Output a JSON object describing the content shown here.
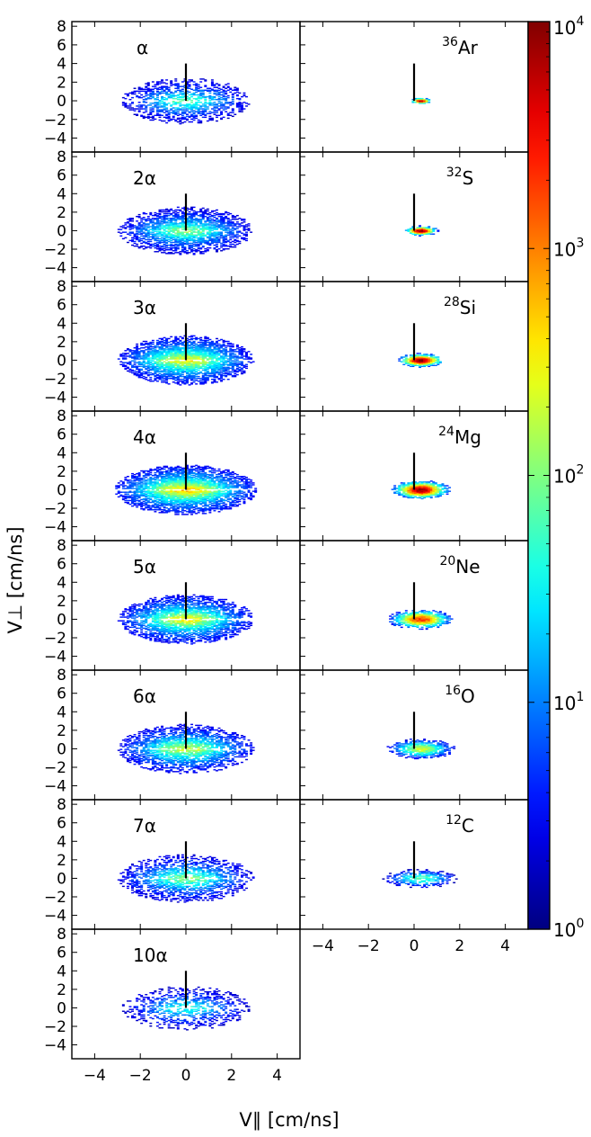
{
  "chart_data": {
    "type": "heatmap",
    "description_free": true,
    "xlabel": "V∥ [cm/ns]",
    "ylabel": "V⊥ [cm/ns]",
    "xlim": [
      -5,
      5
    ],
    "ylim": [
      -5.5,
      8.5
    ],
    "x_ticks": [
      -4,
      -2,
      0,
      2,
      4
    ],
    "y_ticks": [
      -4,
      -2,
      0,
      2,
      4,
      6,
      8
    ],
    "colorbar": {
      "scale": "log",
      "ticks": [
        {
          "base": "10",
          "exp": "0",
          "value": 1
        },
        {
          "base": "10",
          "exp": "1",
          "value": 10
        },
        {
          "base": "10",
          "exp": "2",
          "value": 100
        },
        {
          "base": "10",
          "exp": "3",
          "value": 1000
        },
        {
          "base": "10",
          "exp": "4",
          "value": 10000
        }
      ],
      "range": [
        1,
        10000
      ]
    },
    "marker_line": {
      "x": 0,
      "y0": 0,
      "y1": 4
    },
    "panels": [
      {
        "label": "α",
        "sup": "",
        "column": 0,
        "row": 0,
        "sigma_x": 1.9,
        "sigma_y": 2.3,
        "peak_log": 1.9,
        "density": 0.55,
        "type": "alpha"
      },
      {
        "label": "2α",
        "sup": "",
        "column": 0,
        "row": 1,
        "sigma_x": 2.0,
        "sigma_y": 2.4,
        "peak_log": 2.1,
        "density": 0.75,
        "type": "alpha"
      },
      {
        "label": "3α",
        "sup": "",
        "column": 0,
        "row": 2,
        "sigma_x": 2.0,
        "sigma_y": 2.5,
        "peak_log": 2.6,
        "density": 0.9,
        "type": "alpha"
      },
      {
        "label": "4α",
        "sup": "",
        "column": 0,
        "row": 3,
        "sigma_x": 2.1,
        "sigma_y": 2.5,
        "peak_log": 2.8,
        "density": 0.95,
        "type": "alpha"
      },
      {
        "label": "5α",
        "sup": "",
        "column": 0,
        "row": 4,
        "sigma_x": 2.0,
        "sigma_y": 2.5,
        "peak_log": 2.6,
        "density": 0.85,
        "type": "alpha"
      },
      {
        "label": "6α",
        "sup": "",
        "column": 0,
        "row": 5,
        "sigma_x": 2.0,
        "sigma_y": 2.5,
        "peak_log": 2.4,
        "density": 0.75,
        "type": "alpha"
      },
      {
        "label": "7α",
        "sup": "",
        "column": 0,
        "row": 6,
        "sigma_x": 2.0,
        "sigma_y": 2.4,
        "peak_log": 2.1,
        "density": 0.6,
        "type": "alpha"
      },
      {
        "label": "10α",
        "sup": "",
        "column": 0,
        "row": 7,
        "sigma_x": 1.9,
        "sigma_y": 2.2,
        "peak_log": 1.7,
        "density": 0.4,
        "type": "alpha"
      },
      {
        "label": "Ar",
        "sup": "36",
        "column": 1,
        "row": 0,
        "sigma_x": 0.35,
        "sigma_y": 0.25,
        "peak_log": 4.0,
        "density": 1.0,
        "type": "fragment"
      },
      {
        "label": "S",
        "sup": "32",
        "column": 1,
        "row": 1,
        "sigma_x": 0.55,
        "sigma_y": 0.4,
        "peak_log": 4.0,
        "density": 1.0,
        "type": "fragment"
      },
      {
        "label": "Si",
        "sup": "28",
        "column": 1,
        "row": 2,
        "sigma_x": 0.75,
        "sigma_y": 0.55,
        "peak_log": 4.0,
        "density": 1.0,
        "type": "fragment"
      },
      {
        "label": "Mg",
        "sup": "24",
        "column": 1,
        "row": 3,
        "sigma_x": 0.95,
        "sigma_y": 0.75,
        "peak_log": 3.9,
        "density": 1.0,
        "type": "fragment"
      },
      {
        "label": "Ne",
        "sup": "20",
        "column": 1,
        "row": 4,
        "sigma_x": 1.05,
        "sigma_y": 0.8,
        "peak_log": 3.3,
        "density": 0.95,
        "type": "fragment"
      },
      {
        "label": "O",
        "sup": "16",
        "column": 1,
        "row": 5,
        "sigma_x": 1.1,
        "sigma_y": 0.8,
        "peak_log": 2.3,
        "density": 0.8,
        "type": "fragment"
      },
      {
        "label": "C",
        "sup": "12",
        "column": 1,
        "row": 6,
        "sigma_x": 1.2,
        "sigma_y": 0.75,
        "peak_log": 1.8,
        "density": 0.55,
        "type": "fragment"
      }
    ]
  }
}
